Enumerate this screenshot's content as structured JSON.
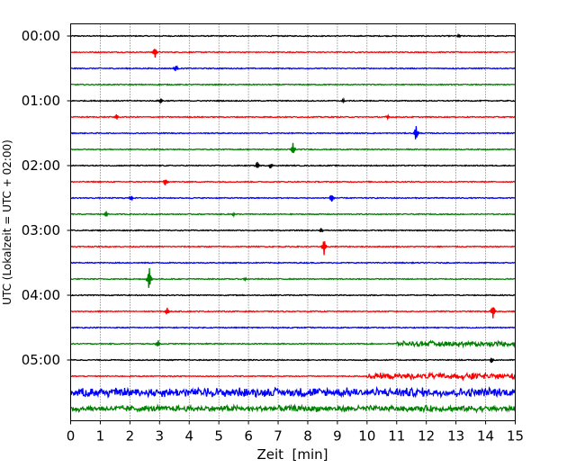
{
  "chart_data": {
    "type": "line",
    "subtype": "seismic-helicorder",
    "title": "",
    "xlabel": "Zeit  [min]",
    "ylabel": "UTC (Lokalzeit = UTC + 02:00)",
    "xlim": [
      0,
      15
    ],
    "x_ticks": [
      "0",
      "1",
      "2",
      "3",
      "4",
      "5",
      "6",
      "7",
      "8",
      "9",
      "10",
      "11",
      "12",
      "13",
      "14",
      "15"
    ],
    "y_ticks": [
      "00:00",
      "01:00",
      "02:00",
      "03:00",
      "04:00",
      "05:00"
    ],
    "grid": "vertical dotted at each minute",
    "trace_colors": [
      "#000000",
      "#ff0000",
      "#0000ff",
      "#008000"
    ],
    "traces_per_hour": 4,
    "minutes_per_trace": 15,
    "trace_count": 24,
    "events": [
      {
        "trace": 0,
        "minute": 13.1,
        "amplitude": 0.25
      },
      {
        "trace": 1,
        "minute": 2.85,
        "amplitude": 0.7
      },
      {
        "trace": 2,
        "minute": 3.55,
        "amplitude": 0.4
      },
      {
        "trace": 4,
        "minute": 3.05,
        "amplitude": 0.3
      },
      {
        "trace": 4,
        "minute": 9.2,
        "amplitude": 0.2
      },
      {
        "trace": 5,
        "minute": 1.55,
        "amplitude": 0.4
      },
      {
        "trace": 5,
        "minute": 10.7,
        "amplitude": 0.25
      },
      {
        "trace": 6,
        "minute": 11.65,
        "amplitude": 1.1
      },
      {
        "trace": 7,
        "minute": 7.5,
        "amplitude": 0.8
      },
      {
        "trace": 8,
        "minute": 6.3,
        "amplitude": 0.4
      },
      {
        "trace": 8,
        "minute": 6.75,
        "amplitude": 0.35
      },
      {
        "trace": 9,
        "minute": 3.2,
        "amplitude": 0.45
      },
      {
        "trace": 10,
        "minute": 2.05,
        "amplitude": 0.3
      },
      {
        "trace": 10,
        "minute": 8.8,
        "amplitude": 0.6
      },
      {
        "trace": 11,
        "minute": 1.2,
        "amplitude": 0.4
      },
      {
        "trace": 11,
        "minute": 5.5,
        "amplitude": 0.2
      },
      {
        "trace": 12,
        "minute": 8.45,
        "amplitude": 0.3
      },
      {
        "trace": 13,
        "minute": 8.55,
        "amplitude": 1.1
      },
      {
        "trace": 15,
        "minute": 2.65,
        "amplitude": 1.6
      },
      {
        "trace": 15,
        "minute": 5.9,
        "amplitude": 0.2
      },
      {
        "trace": 17,
        "minute": 3.25,
        "amplitude": 0.55
      },
      {
        "trace": 17,
        "minute": 14.25,
        "amplitude": 0.9
      },
      {
        "trace": 19,
        "minute": 2.95,
        "amplitude": 0.45
      },
      {
        "trace": 19,
        "minute": 13.1,
        "amplitude": 0.5
      },
      {
        "trace": 20,
        "minute": 14.2,
        "amplitude": 0.35
      },
      {
        "trace": 21,
        "minute": 13.55,
        "amplitude": 0.45
      }
    ],
    "noisy_segments": [
      {
        "trace": 19,
        "from": 11.0,
        "to": 15.0,
        "level": 0.25
      },
      {
        "trace": 21,
        "from": 10.0,
        "to": 15.0,
        "level": 0.3
      },
      {
        "trace": 22,
        "from": 0.0,
        "to": 15.0,
        "level": 0.45
      },
      {
        "trace": 23,
        "from": 0.0,
        "to": 15.0,
        "level": 0.3
      }
    ]
  }
}
